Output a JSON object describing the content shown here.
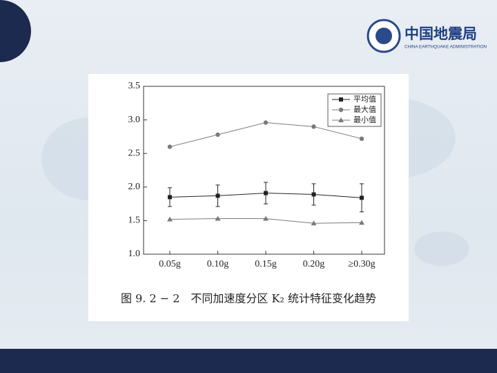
{
  "logo": {
    "name": "中国地震局",
    "english": "CHINA EARTHQUAKE ADMINISTRATION"
  },
  "chart_data": {
    "type": "line",
    "caption": "图 9. 2 − 2　不同加速度分区 K₂ 统计特征变化趋势",
    "categories": [
      "0.05g",
      "0.10g",
      "0.15g",
      "0.20g",
      "≥0.30g"
    ],
    "series": [
      {
        "name": "平均值",
        "color": "#222222",
        "marker": "square",
        "values": [
          1.85,
          1.87,
          1.91,
          1.89,
          1.84
        ],
        "errors": [
          0.14,
          0.16,
          0.16,
          0.16,
          0.21
        ]
      },
      {
        "name": "最大值",
        "color": "#7a7a7a",
        "marker": "circle",
        "values": [
          2.6,
          2.78,
          2.96,
          2.9,
          2.72
        ]
      },
      {
        "name": "最小值",
        "color": "#7a7a7a",
        "marker": "triangle",
        "values": [
          1.52,
          1.53,
          1.53,
          1.46,
          1.47
        ]
      }
    ],
    "ylim": [
      1.0,
      3.5
    ],
    "yticks": [
      {
        "value": 1,
        "label": "1.0"
      },
      1.5,
      {
        "value": 2,
        "label": "2.0"
      },
      2.5,
      {
        "value": 3,
        "label": "3.0"
      },
      3.5
    ],
    "legend": "upper right"
  }
}
